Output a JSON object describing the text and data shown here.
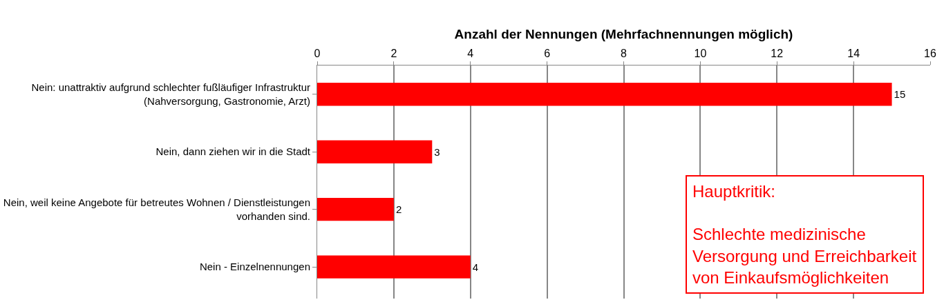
{
  "chart_data": {
    "type": "bar",
    "orientation": "horizontal",
    "xlabel": "Anzahl der Nennungen (Mehrfachnennungen möglich)",
    "categories": [
      "Nein: unattraktiv aufgrund schlechter fußläufiger Infrastruktur\n(Nahversorgung, Gastronomie, Arzt)",
      "Nein, dann ziehen wir in die Stadt",
      "Nein, weil keine Angebote für betreutes Wohnen / Dienstleistungen\nvorhanden sind.",
      "Nein - Einzelnennungen"
    ],
    "values": [
      15,
      3,
      2,
      4
    ],
    "color": "#ff0000",
    "data_labels": true,
    "xlim": [
      0,
      16
    ],
    "xticks": [
      0,
      2,
      4,
      6,
      8,
      10,
      12,
      14,
      16
    ],
    "grid": "x",
    "annotations": [
      "Hauptkritik:",
      "Schlechte medizinische\nVersorgung und Erreichbarkeit\nvon Einkaufsmöglichkeiten"
    ]
  }
}
